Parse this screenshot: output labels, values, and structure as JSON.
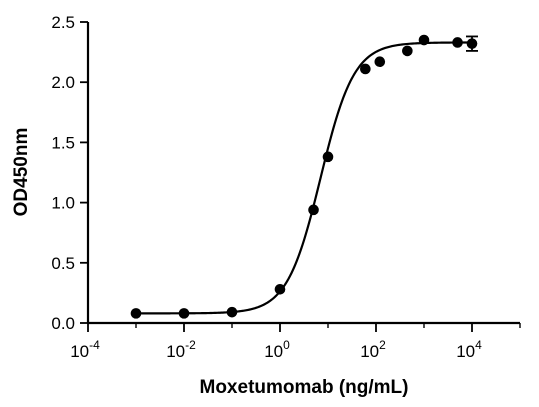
{
  "chart_data": {
    "type": "scatter",
    "xlabel": "Moxetumomab (ng/mL)",
    "ylabel": "OD450nm",
    "x_scale": "log",
    "xlim": [
      0.0001,
      100000
    ],
    "ylim": [
      0,
      2.5
    ],
    "grid": false,
    "x_ticks": [
      {
        "value": 0.0001,
        "base": "10",
        "exp": "-4"
      },
      {
        "value": 0.01,
        "base": "10",
        "exp": "-2"
      },
      {
        "value": 1,
        "base": "10",
        "exp": "0"
      },
      {
        "value": 100,
        "base": "10",
        "exp": "2"
      },
      {
        "value": 10000,
        "base": "10",
        "exp": "4"
      }
    ],
    "y_ticks": [
      {
        "value": 0,
        "label": "0.0"
      },
      {
        "value": 0.5,
        "label": "0.5"
      },
      {
        "value": 1.0,
        "label": "1.0"
      },
      {
        "value": 1.5,
        "label": "1.5"
      },
      {
        "value": 2.0,
        "label": "2.0"
      },
      {
        "value": 2.5,
        "label": "2.5"
      }
    ],
    "series": [
      {
        "x": [
          0.001,
          0.01,
          0.1,
          1,
          5,
          10,
          60,
          120,
          450,
          1000,
          5000,
          10000
        ],
        "y": [
          0.08,
          0.08,
          0.09,
          0.28,
          0.94,
          1.38,
          2.11,
          2.17,
          2.26,
          2.35,
          2.33,
          2.32
        ],
        "yerr": [
          0,
          0,
          0,
          0,
          0,
          0,
          0,
          0,
          0,
          0,
          0,
          0.06
        ]
      }
    ],
    "fit": {
      "model": "4PL",
      "bottom": 0.08,
      "top": 2.33,
      "ec50": 7,
      "hill": 1.25,
      "x_range": [
        0.001,
        10000
      ]
    }
  }
}
